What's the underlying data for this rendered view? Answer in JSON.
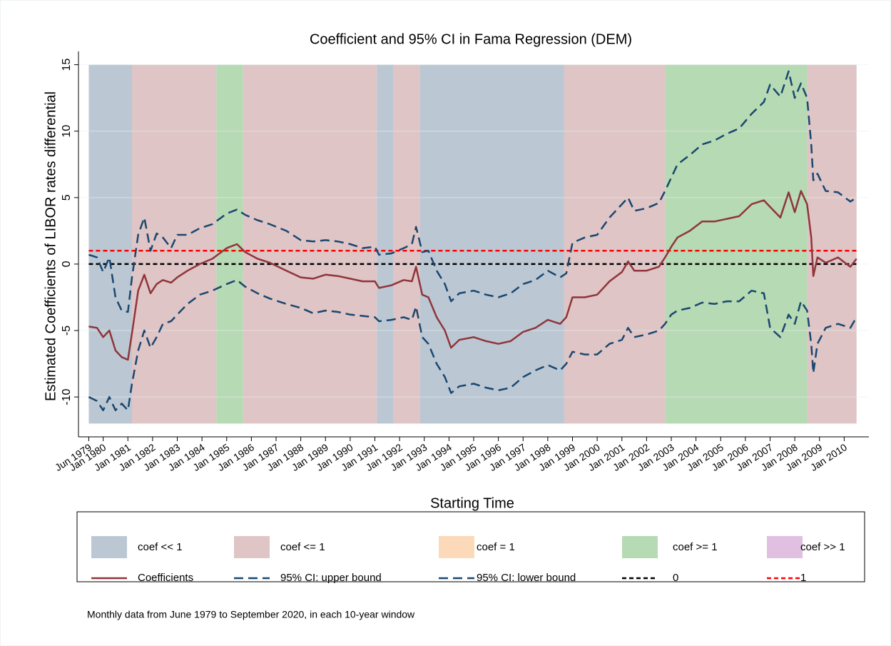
{
  "chart_data": {
    "type": "line",
    "title": "Coefficient and 95% CI in Fama Regression (DEM)",
    "y_label": "Estimated Coefficients of LIBOR rates differential",
    "x_label": "Starting Time",
    "note": "Monthly data from June 1979 to September 2020, in each 10-year window",
    "xlim": [
      "1979-01",
      "2011-01"
    ],
    "ylim": [
      -13,
      16
    ],
    "yticks": [
      -10,
      -5,
      0,
      5,
      10,
      15
    ],
    "grid": true,
    "xticks": [
      {
        "value": "1979-06",
        "label": "Jun 1979"
      },
      {
        "value": "1980-01",
        "label": "Jan 1980"
      },
      {
        "value": "1981-01",
        "label": "Jan 1981"
      },
      {
        "value": "1982-01",
        "label": "Jan 1982"
      },
      {
        "value": "1983-01",
        "label": "Jan 1983"
      },
      {
        "value": "1984-01",
        "label": "Jan 1984"
      },
      {
        "value": "1985-01",
        "label": "Jan 1985"
      },
      {
        "value": "1986-01",
        "label": "Jan 1986"
      },
      {
        "value": "1987-01",
        "label": "Jan 1987"
      },
      {
        "value": "1988-01",
        "label": "Jan 1988"
      },
      {
        "value": "1989-01",
        "label": "Jan 1989"
      },
      {
        "value": "1990-01",
        "label": "Jan 1990"
      },
      {
        "value": "1991-01",
        "label": "Jan 1991"
      },
      {
        "value": "1992-01",
        "label": "Jan 1992"
      },
      {
        "value": "1993-01",
        "label": "Jan 1993"
      },
      {
        "value": "1994-01",
        "label": "Jan 1994"
      },
      {
        "value": "1995-01",
        "label": "Jan 1995"
      },
      {
        "value": "1996-01",
        "label": "Jan 1996"
      },
      {
        "value": "1997-01",
        "label": "Jan 1997"
      },
      {
        "value": "1998-01",
        "label": "Jan 1998"
      },
      {
        "value": "1999-01",
        "label": "Jan 1999"
      },
      {
        "value": "2000-01",
        "label": "Jan 2000"
      },
      {
        "value": "2001-01",
        "label": "Jan 2001"
      },
      {
        "value": "2002-01",
        "label": "Jan 2002"
      },
      {
        "value": "2003-01",
        "label": "Jan 2003"
      },
      {
        "value": "2004-01",
        "label": "Jan 2004"
      },
      {
        "value": "2005-01",
        "label": "Jan 2005"
      },
      {
        "value": "2006-01",
        "label": "Jan 2006"
      },
      {
        "value": "2007-01",
        "label": "Jan 2007"
      },
      {
        "value": "2008-01",
        "label": "Jan 2008"
      },
      {
        "value": "2009-01",
        "label": "Jan 2009"
      },
      {
        "value": "2010-01",
        "label": "Jan 2010"
      }
    ],
    "region_classes": [
      {
        "name": "coef << 1",
        "color": "#bbc8d4"
      },
      {
        "name": "coef <= 1",
        "color": "#dfc5c6"
      },
      {
        "name": "coef = 1",
        "color": "#fcdab9"
      },
      {
        "name": "coef >= 1",
        "color": "#b6dab3"
      },
      {
        "name": "coef >> 1",
        "color": "#e1bfe1"
      }
    ],
    "region_ylim": [
      -12,
      15
    ],
    "regions": [
      {
        "start": "1979-06",
        "end": "1981-03",
        "class": 0
      },
      {
        "start": "1981-03",
        "end": "1984-08",
        "class": 1
      },
      {
        "start": "1984-08",
        "end": "1985-09",
        "class": 3
      },
      {
        "start": "1985-09",
        "end": "1991-02",
        "class": 1
      },
      {
        "start": "1991-02",
        "end": "1991-10",
        "class": 0
      },
      {
        "start": "1991-10",
        "end": "1992-11",
        "class": 1
      },
      {
        "start": "1992-11",
        "end": "1998-09",
        "class": 0
      },
      {
        "start": "1998-09",
        "end": "2002-10",
        "class": 1
      },
      {
        "start": "2002-10",
        "end": "2008-07",
        "class": 3
      },
      {
        "start": "2008-07",
        "end": "2010-07",
        "class": 1
      }
    ],
    "x": [
      "1979-06",
      "1979-10",
      "1980-01",
      "1980-04",
      "1980-07",
      "1980-10",
      "1981-01",
      "1981-03",
      "1981-06",
      "1981-09",
      "1981-12",
      "1982-03",
      "1982-06",
      "1982-10",
      "1983-01",
      "1983-06",
      "1983-12",
      "1984-06",
      "1985-01",
      "1985-06",
      "1985-10",
      "1986-04",
      "1986-10",
      "1987-06",
      "1988-01",
      "1988-07",
      "1989-01",
      "1989-07",
      "1990-01",
      "1990-07",
      "1991-01",
      "1991-03",
      "1991-09",
      "1992-03",
      "1992-07",
      "1992-09",
      "1992-12",
      "1993-03",
      "1993-07",
      "1993-11",
      "1994-02",
      "1994-06",
      "1995-01",
      "1995-07",
      "1996-01",
      "1996-07",
      "1997-01",
      "1997-07",
      "1998-01",
      "1998-07",
      "1998-10",
      "1999-01",
      "1999-07",
      "2000-01",
      "2000-07",
      "2001-01",
      "2001-04",
      "2001-07",
      "2002-01",
      "2002-07",
      "2002-10",
      "2003-01",
      "2003-04",
      "2003-10",
      "2004-04",
      "2004-10",
      "2005-04",
      "2005-10",
      "2006-04",
      "2006-10",
      "2007-01",
      "2007-06",
      "2007-10",
      "2008-01",
      "2008-04",
      "2008-07",
      "2008-09",
      "2008-10",
      "2008-12",
      "2009-04",
      "2009-10",
      "2010-04",
      "2010-07"
    ],
    "series": [
      {
        "name": "Coefficients",
        "color": "#90353b",
        "dash": "solid",
        "values": [
          -4.7,
          -4.8,
          -5.5,
          -5.0,
          -6.5,
          -7.0,
          -7.2,
          -5.2,
          -2.0,
          -0.8,
          -2.2,
          -1.5,
          -1.2,
          -1.4,
          -1.0,
          -0.5,
          0.0,
          0.4,
          1.2,
          1.5,
          0.9,
          0.4,
          0.1,
          -0.5,
          -1.0,
          -1.1,
          -0.8,
          -0.9,
          -1.1,
          -1.3,
          -1.3,
          -1.8,
          -1.6,
          -1.2,
          -1.3,
          -0.2,
          -2.3,
          -2.5,
          -4.0,
          -5.0,
          -6.3,
          -5.7,
          -5.5,
          -5.8,
          -6.0,
          -5.8,
          -5.1,
          -4.8,
          -4.2,
          -4.5,
          -4.0,
          -2.5,
          -2.5,
          -2.3,
          -1.3,
          -0.6,
          0.2,
          -0.5,
          -0.5,
          -0.2,
          0.5,
          1.3,
          2.0,
          2.5,
          3.2,
          3.2,
          3.4,
          3.6,
          4.5,
          4.8,
          4.3,
          3.5,
          5.4,
          3.9,
          5.5,
          4.5,
          2.0,
          -0.9,
          0.5,
          0.1,
          0.5,
          -0.2,
          0.4
        ]
      },
      {
        "name": "95% CI: upper bound",
        "color": "#1a476f",
        "dash": "long",
        "values": [
          0.7,
          0.5,
          -0.6,
          0.5,
          -2.5,
          -3.5,
          -3.6,
          -1.0,
          2.2,
          3.5,
          1.0,
          2.3,
          2.0,
          1.2,
          2.2,
          2.2,
          2.7,
          3.0,
          3.8,
          4.1,
          3.7,
          3.3,
          3.0,
          2.5,
          1.8,
          1.7,
          1.8,
          1.7,
          1.5,
          1.2,
          1.3,
          0.7,
          0.8,
          1.2,
          1.5,
          2.8,
          0.9,
          1.0,
          -0.5,
          -1.5,
          -2.8,
          -2.2,
          -2.0,
          -2.3,
          -2.5,
          -2.2,
          -1.5,
          -1.2,
          -0.5,
          -1.0,
          -0.7,
          1.6,
          2.0,
          2.2,
          3.5,
          4.5,
          5.0,
          4.0,
          4.2,
          4.6,
          5.5,
          6.5,
          7.5,
          8.2,
          9.0,
          9.3,
          9.8,
          10.2,
          11.3,
          12.2,
          13.5,
          12.6,
          14.5,
          12.5,
          13.6,
          12.5,
          9.0,
          6.3,
          6.8,
          5.5,
          5.4,
          4.7,
          5.0
        ]
      },
      {
        "name": "95% CI: lower bound",
        "color": "#1a476f",
        "dash": "long",
        "values": [
          -10.0,
          -10.3,
          -11.0,
          -10.0,
          -11.0,
          -10.5,
          -11.0,
          -9.0,
          -6.5,
          -5.0,
          -6.3,
          -5.5,
          -4.5,
          -4.3,
          -3.8,
          -3.0,
          -2.3,
          -2.0,
          -1.5,
          -1.2,
          -1.7,
          -2.2,
          -2.6,
          -3.0,
          -3.3,
          -3.7,
          -3.5,
          -3.6,
          -3.8,
          -3.9,
          -4.0,
          -4.3,
          -4.2,
          -4.0,
          -4.2,
          -3.2,
          -5.5,
          -6.0,
          -7.5,
          -8.5,
          -9.7,
          -9.2,
          -9.0,
          -9.3,
          -9.5,
          -9.3,
          -8.5,
          -8.0,
          -7.6,
          -8.0,
          -7.5,
          -6.6,
          -6.8,
          -6.8,
          -6.0,
          -5.7,
          -4.8,
          -5.5,
          -5.3,
          -5.0,
          -4.5,
          -3.8,
          -3.5,
          -3.3,
          -2.9,
          -3.0,
          -2.8,
          -2.8,
          -2.0,
          -2.2,
          -4.8,
          -5.5,
          -3.8,
          -4.5,
          -2.8,
          -3.5,
          -6.0,
          -8.2,
          -6.0,
          -4.8,
          -4.5,
          -4.8,
          -4.0
        ]
      }
    ],
    "reference_lines": [
      {
        "name": "0",
        "value": 0,
        "color": "#000000"
      },
      {
        "name": "1",
        "value": 1,
        "color": "#ff0000"
      }
    ]
  }
}
